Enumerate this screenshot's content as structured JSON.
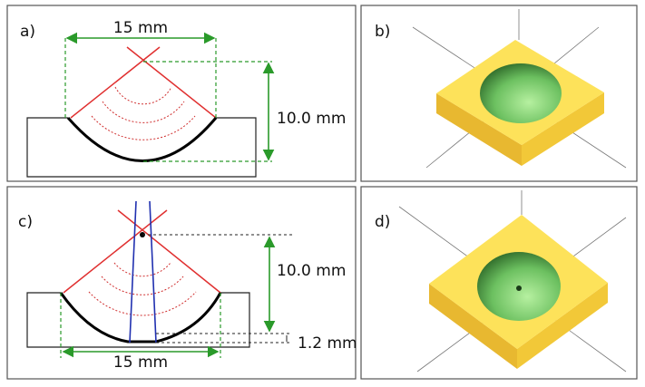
{
  "panels": [
    {
      "label": "a)",
      "width_label": "15 mm",
      "depth_label": "10.0 mm"
    },
    {
      "label": "b)"
    },
    {
      "label": "c)",
      "width_label": "15 mm",
      "depth_label": "10.0 mm",
      "offset_label": "1.2 mm"
    },
    {
      "label": "d)"
    }
  ]
}
